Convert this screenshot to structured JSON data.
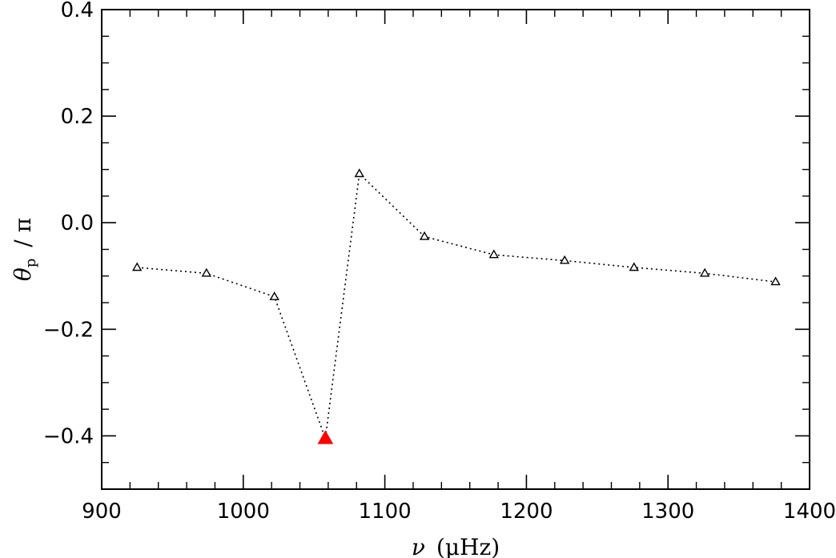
{
  "chart_data": {
    "type": "scatter",
    "xlabel": "ν (μHz)",
    "xlabel_parts": {
      "symbol": "ν",
      "unit": "(μHz)"
    },
    "ylabel": "θp / π",
    "ylabel_parts": {
      "symbol": "θ",
      "subscript": "p",
      "rest": "/ π"
    },
    "xlim": [
      900,
      1400
    ],
    "ylim": [
      -0.5,
      0.4
    ],
    "xticks": [
      900,
      1000,
      1100,
      1200,
      1300,
      1400
    ],
    "xtick_labels": [
      "900",
      "1000",
      "1100",
      "1200",
      "1300",
      "1400"
    ],
    "yticks": [
      -0.4,
      -0.2,
      0.0,
      0.2,
      0.4
    ],
    "ytick_labels": [
      "−0.4",
      "−0.2",
      "0.0",
      "0.2",
      "0.4"
    ],
    "line_style": "dotted",
    "marker": "open-triangle",
    "highlight_color": "#ff0000",
    "x": [
      925,
      974,
      1022,
      1058,
      1082,
      1128,
      1177,
      1227,
      1276,
      1326,
      1376
    ],
    "y": [
      -0.084,
      -0.095,
      -0.139,
      -0.405,
      0.092,
      -0.026,
      -0.06,
      -0.071,
      -0.084,
      -0.095,
      -0.111
    ],
    "highlight_index": 3,
    "grid": false,
    "legend": "none"
  }
}
